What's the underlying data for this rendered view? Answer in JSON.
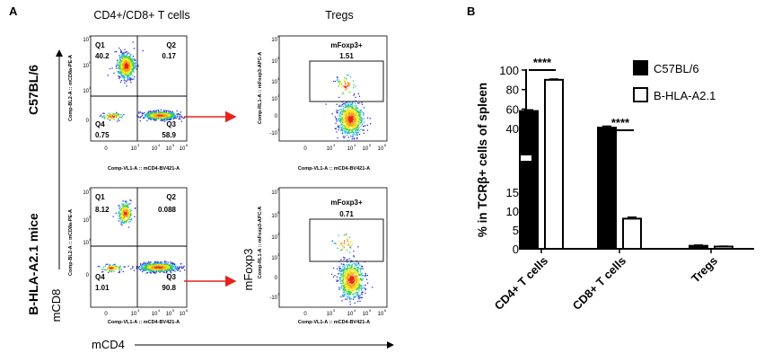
{
  "panel_a": {
    "letter": "A",
    "col_titles": [
      "CD4+/CD8+ T cells",
      "Tregs"
    ],
    "row_labels": [
      "C57BL/6",
      "B-HLA-A2.1 mice"
    ],
    "y_axis_label": "mCD8",
    "x_axis_label": "mCD4",
    "treg_y_label": "mFoxp3",
    "quadrant_x_axis": "Comp-VL1-A :: mCD4-BV421-A",
    "quadrant_y_axis": "Comp-BL2-A :: mCD8a-PE-A",
    "treg_x_axis": "Comp-VL1-A :: mCD4-BV421-A",
    "treg_y_axis": "Comp-RL1-A :: mFoxp3-APC-A",
    "quadrant_ticks_x": [
      "0",
      "10",
      "10",
      "10",
      "10"
    ],
    "quadrant_ticks_x_exp": [
      "",
      "3",
      "4",
      "5",
      "6"
    ],
    "quadrant_ticks_y": [
      "10",
      "10",
      "10",
      "0"
    ],
    "quadrant_ticks_y_exp": [
      "6",
      "5",
      "4",
      ""
    ],
    "treg_ticks_x": [
      "0",
      "10",
      "10",
      "10",
      "10"
    ],
    "treg_ticks_x_exp": [
      "",
      "3",
      "4",
      "5",
      "6"
    ],
    "treg_ticks_y": [
      "10",
      "10",
      "10",
      "10",
      "0",
      "-10"
    ],
    "treg_ticks_y_exp": [
      "6",
      "5",
      "4",
      "3",
      "",
      "3"
    ],
    "gate_label": "mFoxp3+",
    "rows": [
      {
        "quadrants": {
          "Q1": {
            "name": "Q1",
            "value": "40.2"
          },
          "Q2": {
            "name": "Q2",
            "value": "0.17"
          },
          "Q3": {
            "name": "Q3",
            "value": "58.9"
          },
          "Q4": {
            "name": "Q4",
            "value": "0.75"
          }
        },
        "foxp3_value": "1.51"
      },
      {
        "quadrants": {
          "Q1": {
            "name": "Q1",
            "value": "8.12"
          },
          "Q2": {
            "name": "Q2",
            "value": "0.088"
          },
          "Q3": {
            "name": "Q3",
            "value": "90.8"
          },
          "Q4": {
            "name": "Q4",
            "value": "1.01"
          }
        },
        "foxp3_value": "0.71"
      }
    ]
  },
  "panel_b": {
    "letter": "B",
    "significance": [
      "****",
      "****"
    ]
  },
  "chart_data": {
    "type": "bar",
    "title": "",
    "xlabel": "",
    "ylabel": "% in TCRβ+ cells of spleen",
    "categories": [
      "CD4+ T cells",
      "CD8+ T cells",
      "Tregs"
    ],
    "series": [
      {
        "name": "C57BL/6",
        "values": [
          58,
          41,
          0.8
        ],
        "errors": [
          1.2,
          1.5,
          0.2
        ],
        "fill": "#000000"
      },
      {
        "name": "B-HLA-A2.1",
        "values": [
          90,
          8,
          0.6
        ],
        "errors": [
          0.8,
          0.4,
          0.1
        ],
        "fill": "#ffffff"
      }
    ],
    "y_axis_break": {
      "lower": [
        0,
        15
      ],
      "upper": [
        30,
        100
      ]
    },
    "yticks_lower": [
      0,
      5,
      10,
      15
    ],
    "yticks_upper": [
      40,
      60,
      80,
      100
    ],
    "legend_position": "top-right",
    "significance_annotations": [
      {
        "category": "CD4+ T cells",
        "text": "****"
      },
      {
        "category": "CD8+ T cells",
        "text": "****"
      }
    ],
    "grid": false,
    "colors": {
      "C57BL/6": "#000000",
      "B-HLA-A2.1": "#ffffff",
      "arrow": "#e8221b"
    }
  }
}
